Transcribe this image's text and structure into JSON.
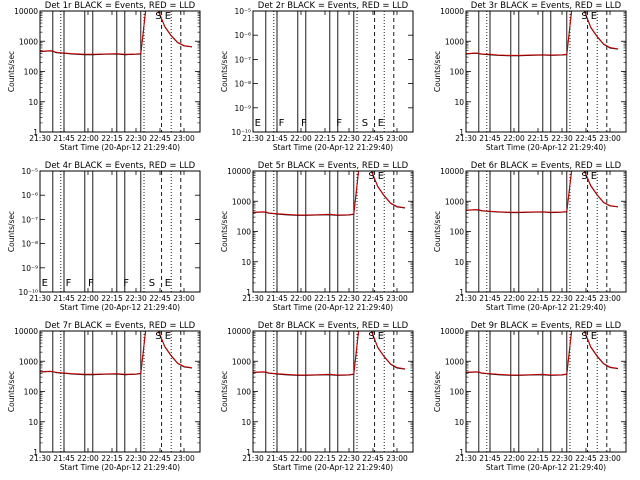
{
  "window": {
    "background": "#ffffff"
  },
  "colors": {
    "events": "#000000",
    "lld": "#cc0000"
  },
  "common": {
    "xlabel": "Start Time (20-Apr-12 21:29:40)",
    "ylabel": "Counts/sec",
    "x_tick_labels": [
      "21:30",
      "21:45",
      "22:00",
      "22:15",
      "22:30",
      "22:45",
      "23:00"
    ],
    "x_ticks_min": [
      0,
      15,
      30,
      45,
      60,
      75,
      90
    ],
    "xlim_min": [
      0,
      100
    ],
    "y_tick_labels": [
      "1",
      "10",
      "100",
      "1000",
      "10000"
    ],
    "y_tick_labels_flat": [
      "10⁻⁵",
      "10⁻⁶",
      "10⁻⁷",
      "10⁻⁸",
      "10⁻⁹",
      "10⁻¹⁰"
    ],
    "solid_lines_min": [
      8,
      15,
      28,
      33,
      48,
      53,
      63
    ],
    "dashed_lines_min": [
      76,
      88
    ],
    "dotted_lines_min": [
      13,
      65,
      82
    ]
  },
  "chart_data": [
    {
      "type": "line",
      "title": "Det 1r BLACK = Events, RED = LLD",
      "yscale": "log",
      "ylim": [
        1,
        10000
      ],
      "series": [
        {
          "name": "Events",
          "color": "#000000",
          "x": [
            0,
            6,
            8,
            10,
            15,
            20,
            28,
            33,
            40,
            48,
            53,
            60,
            63,
            66,
            68,
            70,
            74,
            78,
            82,
            86,
            90,
            95
          ],
          "y": [
            450,
            480,
            470,
            420,
            400,
            380,
            360,
            360,
            370,
            380,
            360,
            370,
            380,
            10000,
            10000,
            10000,
            10000,
            3000,
            1500,
            900,
            700,
            650
          ]
        },
        {
          "name": "LLD",
          "color": "#cc0000",
          "x": [
            0,
            6,
            8,
            10,
            15,
            20,
            28,
            33,
            40,
            48,
            53,
            60,
            63,
            66,
            68,
            70,
            74,
            78,
            82,
            86,
            90,
            95
          ],
          "y": [
            460,
            490,
            480,
            430,
            410,
            390,
            370,
            370,
            380,
            390,
            370,
            380,
            390,
            10000,
            10000,
            10000,
            10000,
            3100,
            1550,
            920,
            720,
            660
          ]
        }
      ],
      "flags": [
        {
          "label": "S",
          "x_min": 72
        },
        {
          "label": "E",
          "x_min": 78
        }
      ]
    },
    {
      "type": "line",
      "title": "Det 2r BLACK = Events, RED = LLD",
      "yscale": "log-flat",
      "series": [],
      "flags": [
        {
          "label": "E",
          "x_min": 1
        },
        {
          "label": "F",
          "x_min": 16
        },
        {
          "label": "F",
          "x_min": 30
        },
        {
          "label": "F",
          "x_min": 52
        },
        {
          "label": "S",
          "x_min": 68
        },
        {
          "label": "E",
          "x_min": 78
        }
      ]
    },
    {
      "type": "line",
      "title": "Det 3r BLACK = Events, RED = LLD",
      "yscale": "log",
      "ylim": [
        1,
        10000
      ],
      "series": [
        {
          "name": "Events",
          "color": "#000000",
          "x": [
            0,
            6,
            8,
            10,
            15,
            20,
            28,
            33,
            40,
            48,
            53,
            60,
            63,
            66,
            68,
            70,
            74,
            78,
            82,
            86,
            90,
            95
          ],
          "y": [
            380,
            400,
            390,
            370,
            360,
            340,
            330,
            330,
            340,
            350,
            340,
            350,
            360,
            10000,
            10000,
            10000,
            10000,
            2800,
            1400,
            800,
            600,
            550
          ]
        },
        {
          "name": "LLD",
          "color": "#cc0000",
          "x": [
            0,
            6,
            8,
            10,
            15,
            20,
            28,
            33,
            40,
            48,
            53,
            60,
            63,
            66,
            68,
            70,
            74,
            78,
            82,
            86,
            90,
            95
          ],
          "y": [
            390,
            410,
            400,
            380,
            370,
            350,
            340,
            340,
            350,
            360,
            350,
            360,
            370,
            10000,
            10000,
            10000,
            10000,
            2900,
            1450,
            820,
            620,
            560
          ]
        }
      ],
      "flags": [
        {
          "label": "S",
          "x_min": 72
        },
        {
          "label": "E",
          "x_min": 78
        }
      ]
    },
    {
      "type": "line",
      "title": "Det 4r BLACK = Events, RED = LLD",
      "yscale": "log-flat",
      "series": [],
      "flags": [
        {
          "label": "E",
          "x_min": 1
        },
        {
          "label": "F",
          "x_min": 16
        },
        {
          "label": "F",
          "x_min": 30
        },
        {
          "label": "F",
          "x_min": 52
        },
        {
          "label": "S",
          "x_min": 68
        },
        {
          "label": "E",
          "x_min": 78
        }
      ]
    },
    {
      "type": "line",
      "title": "Det 5r BLACK = Events, RED = LLD",
      "yscale": "log",
      "ylim": [
        1,
        10000
      ],
      "series": [
        {
          "name": "Events",
          "color": "#000000",
          "x": [
            0,
            6,
            8,
            10,
            15,
            20,
            28,
            33,
            40,
            48,
            53,
            60,
            63,
            66,
            68,
            70,
            74,
            78,
            82,
            86,
            90,
            95
          ],
          "y": [
            420,
            440,
            430,
            400,
            380,
            360,
            340,
            340,
            350,
            360,
            340,
            350,
            370,
            10000,
            10000,
            10000,
            10000,
            3000,
            1500,
            850,
            650,
            600
          ]
        },
        {
          "name": "LLD",
          "color": "#cc0000",
          "x": [
            0,
            6,
            8,
            10,
            15,
            20,
            28,
            33,
            40,
            48,
            53,
            60,
            63,
            66,
            68,
            70,
            74,
            78,
            82,
            86,
            90,
            95
          ],
          "y": [
            430,
            450,
            440,
            410,
            390,
            370,
            350,
            350,
            360,
            370,
            350,
            360,
            380,
            10000,
            10000,
            10000,
            10000,
            3100,
            1550,
            870,
            670,
            610
          ]
        }
      ],
      "flags": [
        {
          "label": "S",
          "x_min": 72
        },
        {
          "label": "E",
          "x_min": 78
        }
      ]
    },
    {
      "type": "line",
      "title": "Det 6r BLACK = Events, RED = LLD",
      "yscale": "log",
      "ylim": [
        1,
        10000
      ],
      "series": [
        {
          "name": "Events",
          "color": "#000000",
          "x": [
            0,
            6,
            8,
            10,
            15,
            20,
            28,
            33,
            40,
            48,
            53,
            60,
            63,
            66,
            68,
            70,
            74,
            78,
            82,
            86,
            90,
            95
          ],
          "y": [
            500,
            520,
            510,
            480,
            460,
            440,
            420,
            420,
            430,
            440,
            420,
            430,
            450,
            10000,
            10000,
            10000,
            10000,
            3200,
            1600,
            900,
            700,
            650
          ]
        },
        {
          "name": "LLD",
          "color": "#cc0000",
          "x": [
            0,
            6,
            8,
            10,
            15,
            20,
            28,
            33,
            40,
            48,
            53,
            60,
            63,
            66,
            68,
            70,
            74,
            78,
            82,
            86,
            90,
            95
          ],
          "y": [
            510,
            530,
            520,
            490,
            470,
            450,
            430,
            430,
            440,
            450,
            430,
            440,
            460,
            10000,
            10000,
            10000,
            10000,
            3300,
            1650,
            920,
            720,
            660
          ]
        }
      ],
      "flags": [
        {
          "label": "S",
          "x_min": 72
        },
        {
          "label": "E",
          "x_min": 78
        }
      ]
    },
    {
      "type": "line",
      "title": "Det 7r BLACK = Events, RED = LLD",
      "yscale": "log",
      "ylim": [
        1,
        10000
      ],
      "series": [
        {
          "name": "Events",
          "color": "#000000",
          "x": [
            0,
            6,
            8,
            10,
            15,
            20,
            28,
            33,
            40,
            48,
            53,
            60,
            63,
            66,
            68,
            70,
            74,
            78,
            82,
            86,
            90,
            95
          ],
          "y": [
            440,
            460,
            450,
            420,
            400,
            380,
            360,
            360,
            370,
            380,
            360,
            370,
            390,
            10000,
            10000,
            10000,
            10000,
            3000,
            1500,
            850,
            650,
            600
          ]
        },
        {
          "name": "LLD",
          "color": "#cc0000",
          "x": [
            0,
            6,
            8,
            10,
            15,
            20,
            28,
            33,
            40,
            48,
            53,
            60,
            63,
            66,
            68,
            70,
            74,
            78,
            82,
            86,
            90,
            95
          ],
          "y": [
            450,
            470,
            460,
            430,
            410,
            390,
            370,
            370,
            380,
            390,
            370,
            380,
            400,
            10000,
            10000,
            10000,
            10000,
            3100,
            1550,
            870,
            670,
            610
          ]
        }
      ],
      "flags": [
        {
          "label": "S",
          "x_min": 72
        },
        {
          "label": "E",
          "x_min": 78
        }
      ]
    },
    {
      "type": "line",
      "title": "Det 8r BLACK = Events, RED = LLD",
      "yscale": "log",
      "ylim": [
        1,
        10000
      ],
      "series": [
        {
          "name": "Events",
          "color": "#000000",
          "x": [
            0,
            6,
            8,
            10,
            15,
            20,
            28,
            33,
            40,
            48,
            53,
            60,
            63,
            66,
            68,
            70,
            74,
            78,
            82,
            86,
            90,
            95
          ],
          "y": [
            420,
            440,
            430,
            400,
            380,
            360,
            340,
            340,
            350,
            360,
            340,
            350,
            370,
            10000,
            10000,
            10000,
            10000,
            2800,
            1400,
            800,
            600,
            550
          ]
        },
        {
          "name": "LLD",
          "color": "#cc0000",
          "x": [
            0,
            6,
            8,
            10,
            15,
            20,
            28,
            33,
            40,
            48,
            53,
            60,
            63,
            66,
            68,
            70,
            74,
            78,
            82,
            86,
            90,
            95
          ],
          "y": [
            430,
            450,
            440,
            410,
            390,
            370,
            350,
            350,
            360,
            370,
            350,
            360,
            380,
            10000,
            10000,
            10000,
            10000,
            2900,
            1450,
            820,
            620,
            560
          ]
        }
      ],
      "flags": [
        {
          "label": "S",
          "x_min": 72
        },
        {
          "label": "E",
          "x_min": 78
        }
      ]
    },
    {
      "type": "line",
      "title": "Det 9r BLACK = Events, RED = LLD",
      "yscale": "log",
      "ylim": [
        1,
        10000
      ],
      "series": [
        {
          "name": "Events",
          "color": "#000000",
          "x": [
            0,
            6,
            8,
            10,
            15,
            20,
            28,
            33,
            40,
            48,
            53,
            60,
            63,
            66,
            68,
            70,
            74,
            78,
            82,
            86,
            90,
            95
          ],
          "y": [
            420,
            440,
            430,
            400,
            380,
            360,
            340,
            340,
            350,
            360,
            340,
            350,
            370,
            10000,
            10000,
            10000,
            10000,
            2900,
            1450,
            820,
            620,
            570
          ]
        },
        {
          "name": "LLD",
          "color": "#cc0000",
          "x": [
            0,
            6,
            8,
            10,
            15,
            20,
            28,
            33,
            40,
            48,
            53,
            60,
            63,
            66,
            68,
            70,
            74,
            78,
            82,
            86,
            90,
            95
          ],
          "y": [
            430,
            450,
            440,
            410,
            390,
            370,
            350,
            350,
            360,
            370,
            350,
            360,
            380,
            10000,
            10000,
            10000,
            10000,
            3000,
            1500,
            840,
            640,
            580
          ]
        }
      ],
      "flags": [
        {
          "label": "S",
          "x_min": 72
        },
        {
          "label": "E",
          "x_min": 78
        }
      ]
    }
  ]
}
